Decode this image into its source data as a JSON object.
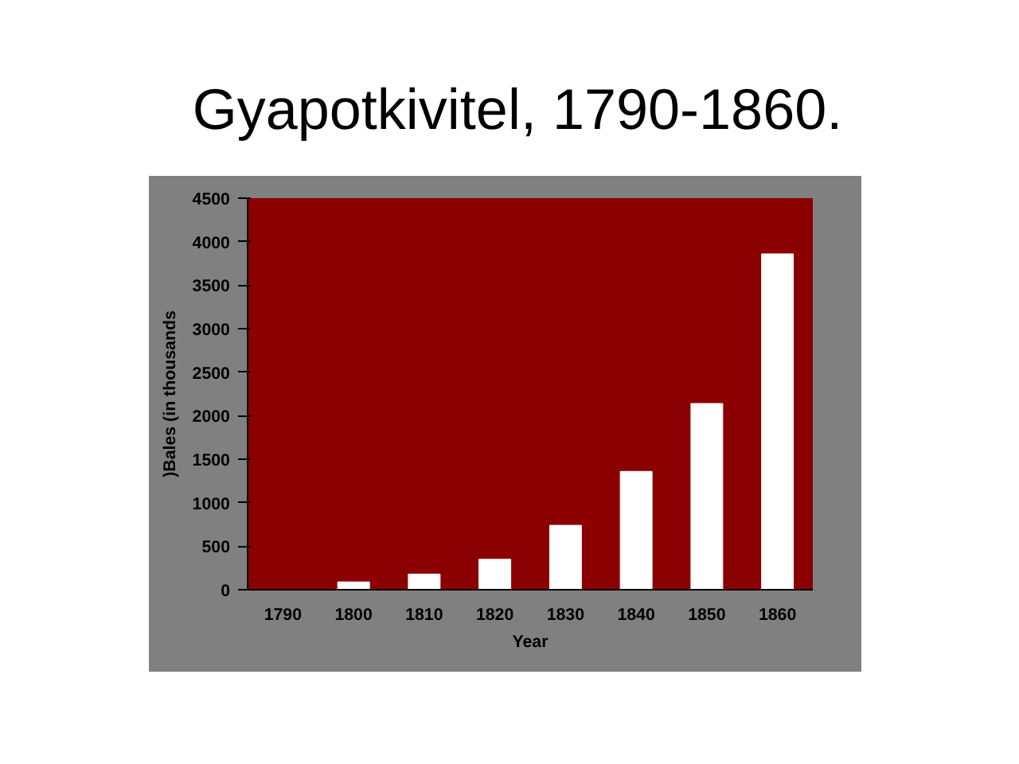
{
  "chart_data": {
    "type": "bar",
    "title": "Gyapotkivitel, 1790-1860.",
    "xlabel": "Year",
    "ylabel": ")Bales (in thousands",
    "categories": [
      "1790",
      "1800",
      "1810",
      "1820",
      "1830",
      "1840",
      "1850",
      "1860"
    ],
    "values": [
      null,
      90,
      180,
      350,
      740,
      1360,
      2140,
      3860
    ],
    "color": "#ffffff",
    "ylim": [
      0,
      4500
    ],
    "yticks": [
      0,
      500,
      1000,
      1500,
      2000,
      2500,
      3000,
      3500,
      4000,
      4500
    ],
    "grid": false
  }
}
